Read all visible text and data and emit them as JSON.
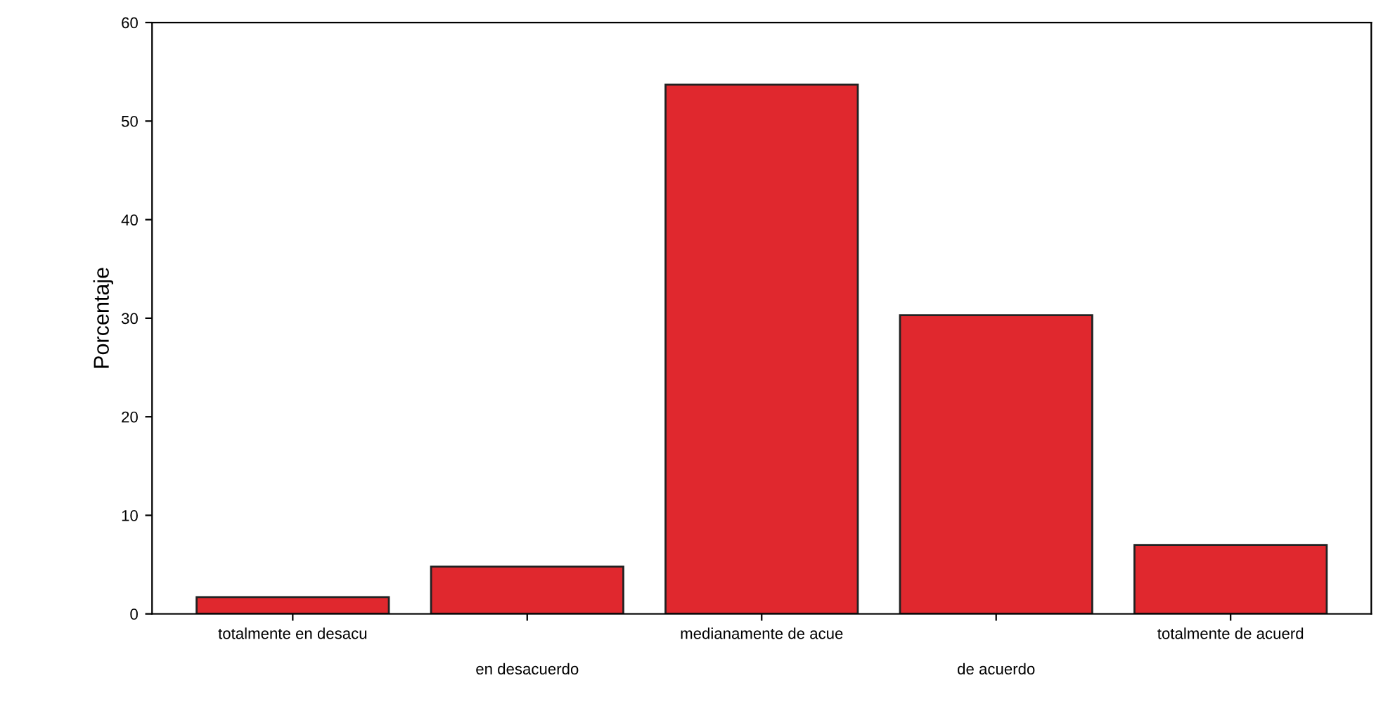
{
  "chart_data": {
    "type": "bar",
    "ylabel": "Porcentaje",
    "categories": [
      "totalmente en desacu",
      "en desacuerdo",
      "medianamente de acue",
      "de acuerdo",
      "totalmente de acuerd"
    ],
    "values": [
      1.7,
      4.8,
      53.7,
      30.3,
      7.0
    ],
    "color": "#e0282e",
    "ylim": [
      0,
      60
    ],
    "yticks": [
      0,
      10,
      20,
      30,
      40,
      50,
      60
    ],
    "grid": false
  }
}
